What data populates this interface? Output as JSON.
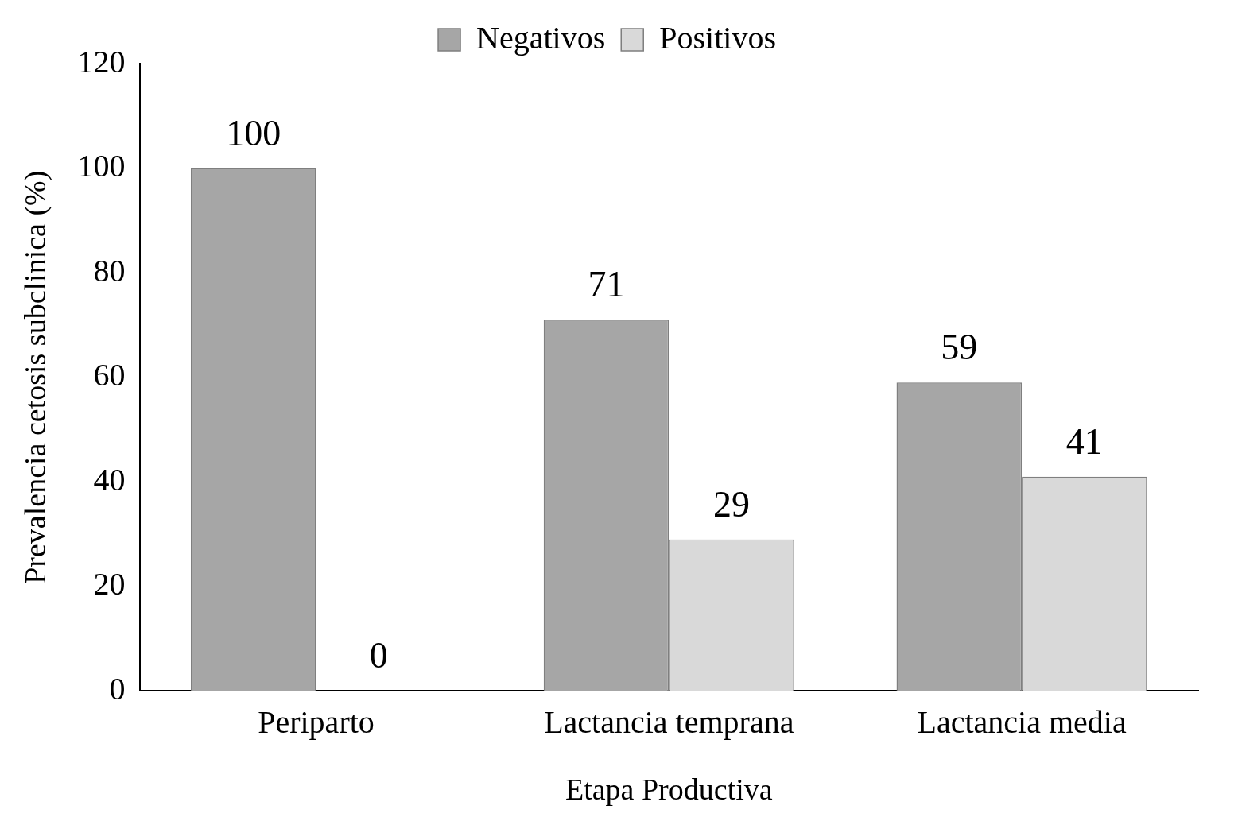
{
  "chart_data": {
    "type": "bar",
    "x_label": "Etapa Productiva",
    "y_label": "Prevalencia cetosis subclinica (%)",
    "categories": [
      "Periparto",
      "Lactancia temprana",
      "Lactancia media"
    ],
    "series": [
      {
        "name": "Negativos",
        "color": "#a6a6a6",
        "values": [
          100,
          71,
          59
        ]
      },
      {
        "name": "Positivos",
        "color": "#d9d9d9",
        "values": [
          0,
          29,
          41
        ]
      }
    ],
    "ylim": [
      0,
      120
    ],
    "yticks": [
      0,
      20,
      40,
      60,
      80,
      100,
      120
    ],
    "grid": false,
    "legend": "top",
    "data_labels": true
  }
}
